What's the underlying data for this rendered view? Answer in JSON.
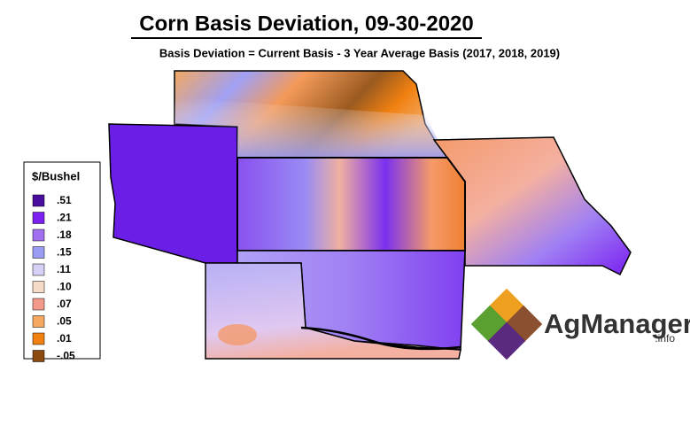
{
  "header": {
    "title": "Corn Basis Deviation, 09-30-2020",
    "subtitle": "Basis Deviation = Current Basis - 3 Year Average Basis (2017, 2018, 2019)"
  },
  "legend": {
    "title": "$/Bushel",
    "items": [
      {
        "label": ".51",
        "color": "#4a0e9e"
      },
      {
        "label": ".21",
        "color": "#7a1ff0"
      },
      {
        "label": ".18",
        "color": "#a070f0"
      },
      {
        "label": ".15",
        "color": "#9a9cf4"
      },
      {
        "label": ".11",
        "color": "#d6d0f6"
      },
      {
        "label": ".10",
        "color": "#f6dcc8"
      },
      {
        "label": ".07",
        "color": "#f49a8a"
      },
      {
        "label": ".05",
        "color": "#f4a860"
      },
      {
        "label": ".01",
        "color": "#f08010"
      },
      {
        "label": "-.05",
        "color": "#8a4a10"
      }
    ]
  },
  "logo": {
    "name": "AgManager",
    "suffix": ".info"
  }
}
